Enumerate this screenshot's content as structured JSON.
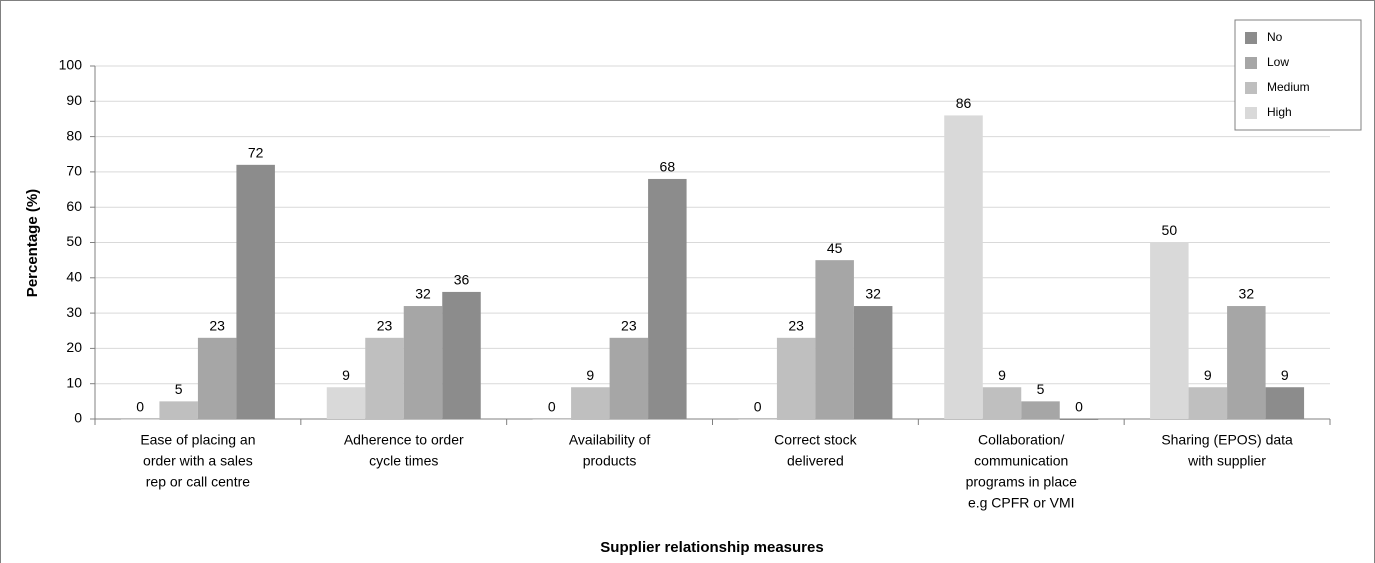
{
  "chart_data": {
    "type": "bar",
    "x_label": "Supplier relationship measures",
    "y_label": "Percentage (%)",
    "categories": [
      [
        "Ease of placing an",
        "order with a sales",
        "rep or call centre"
      ],
      [
        "Adherence to order",
        "cycle times"
      ],
      [
        "Availability of",
        "products"
      ],
      [
        "Correct stock",
        "delivered"
      ],
      [
        "Collaboration/",
        "communication",
        "programs in place",
        "e.g  CPFR or VMI"
      ],
      [
        "Sharing (EPOS) data",
        "with supplier"
      ]
    ],
    "series": [
      {
        "name": "High",
        "color": "#d9d9d9",
        "values": [
          0,
          9,
          0,
          0,
          86,
          50
        ]
      },
      {
        "name": "Medium",
        "color": "#bfbfbf",
        "values": [
          5,
          23,
          9,
          23,
          9,
          9
        ]
      },
      {
        "name": "Low",
        "color": "#a6a6a6",
        "values": [
          23,
          32,
          23,
          45,
          5,
          32
        ]
      },
      {
        "name": "No",
        "color": "#8c8c8c",
        "values": [
          72,
          36,
          68,
          32,
          0,
          9
        ]
      }
    ],
    "ylim": [
      0,
      100
    ],
    "yticks": [
      0,
      10,
      20,
      30,
      40,
      50,
      60,
      70,
      80,
      90,
      100
    ],
    "grid": true,
    "legend": "top-right"
  }
}
